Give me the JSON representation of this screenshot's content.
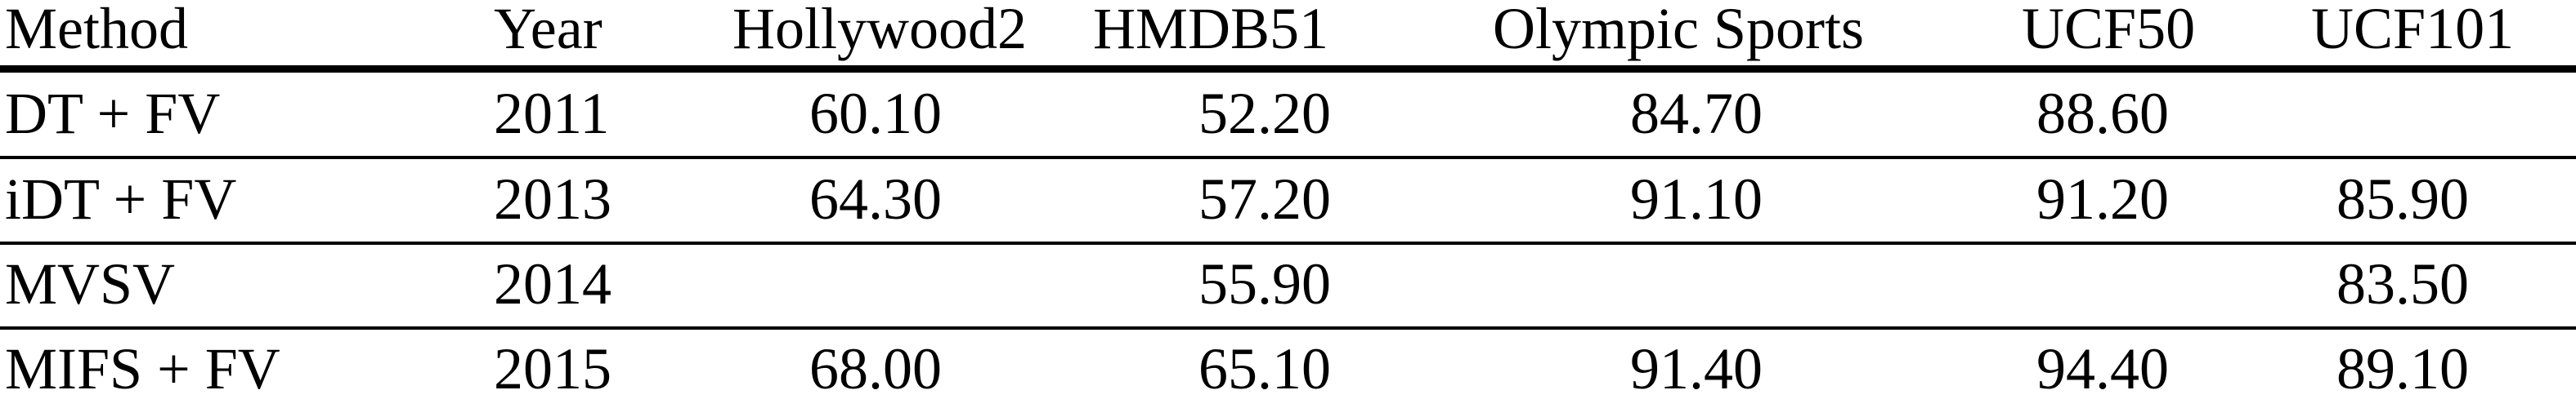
{
  "table": {
    "headers": [
      "Method",
      "Year",
      "Hollywood2",
      "HMDB51",
      "Olympic Sports",
      "UCF50",
      "UCF101"
    ],
    "rows": [
      [
        "DT + FV",
        "2011",
        "60.10",
        "52.20",
        "84.70",
        "88.60",
        ""
      ],
      [
        "iDT + FV",
        "2013",
        "64.30",
        "57.20",
        "91.10",
        "91.20",
        "85.90"
      ],
      [
        "MVSV",
        "2014",
        "",
        "55.90",
        "",
        "",
        "83.50"
      ],
      [
        "MIFS + FV",
        "2015",
        "68.00",
        "65.10",
        "91.40",
        "94.40",
        "89.10"
      ]
    ]
  }
}
